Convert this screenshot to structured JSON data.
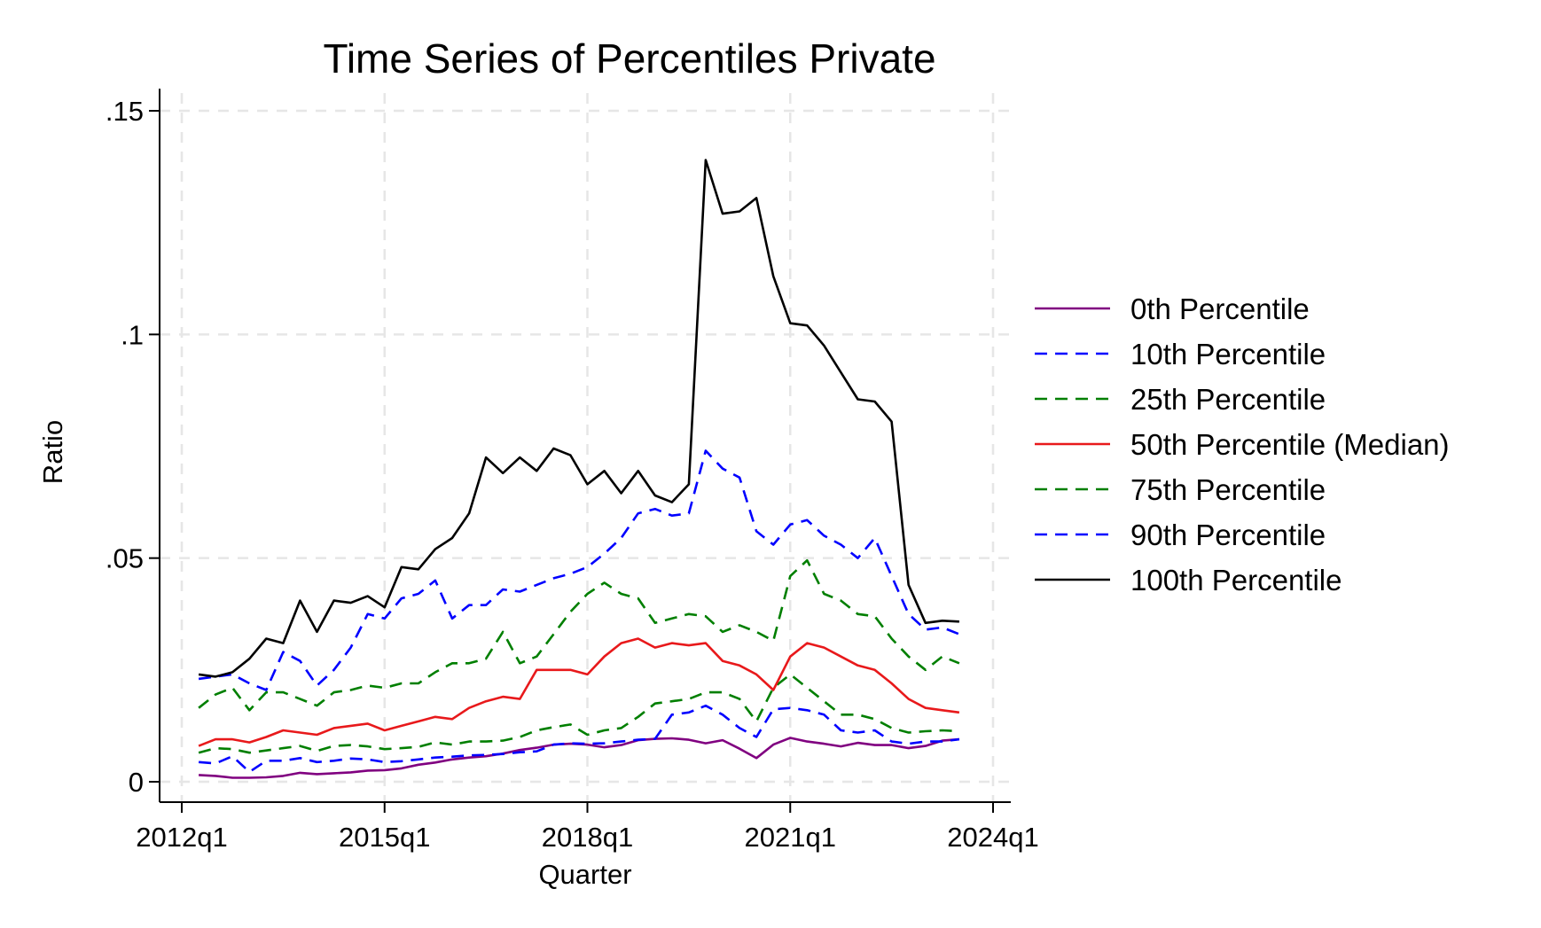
{
  "chart_data": {
    "type": "line",
    "title": "Time Series of Percentiles Private",
    "xlabel": "Quarter",
    "ylabel": "Ratio",
    "ylim": [
      0,
      0.155
    ],
    "xlim": [
      "2012q1",
      "2024q1"
    ],
    "x_ticks": [
      "2012q1",
      "2015q1",
      "2018q1",
      "2021q1",
      "2024q1"
    ],
    "y_ticks": [
      {
        "value": 0,
        "label": "0"
      },
      {
        "value": 0.05,
        "label": ".05"
      },
      {
        "value": 0.1,
        "label": ".1"
      },
      {
        "value": 0.15,
        "label": ".15"
      }
    ],
    "grid": true,
    "legend_position": "right",
    "x": [
      "2012q2",
      "2012q3",
      "2012q4",
      "2013q1",
      "2013q2",
      "2013q3",
      "2013q4",
      "2014q1",
      "2014q2",
      "2014q3",
      "2014q4",
      "2015q1",
      "2015q2",
      "2015q3",
      "2015q4",
      "2016q1",
      "2016q2",
      "2016q3",
      "2016q4",
      "2017q1",
      "2017q2",
      "2017q3",
      "2017q4",
      "2018q1",
      "2018q2",
      "2018q3",
      "2018q4",
      "2019q1",
      "2019q2",
      "2019q3",
      "2019q4",
      "2020q1",
      "2020q2",
      "2020q3",
      "2020q4",
      "2021q1",
      "2021q2",
      "2021q3",
      "2021q4",
      "2022q1",
      "2022q2",
      "2022q3",
      "2022q4",
      "2023q1",
      "2023q2",
      "2023q3"
    ],
    "series": [
      {
        "name": "0th Percentile",
        "color": "#800080",
        "dash": "solid",
        "values": [
          0.0015,
          0.0013,
          0.0009,
          0.0009,
          0.001,
          0.0013,
          0.002,
          0.0017,
          0.0019,
          0.0021,
          0.0025,
          0.0026,
          0.003,
          0.0038,
          0.0043,
          0.005,
          0.0054,
          0.0057,
          0.0063,
          0.0071,
          0.0076,
          0.0083,
          0.0085,
          0.0083,
          0.0077,
          0.0082,
          0.0093,
          0.0096,
          0.0097,
          0.0094,
          0.0086,
          0.0093,
          0.0074,
          0.0053,
          0.0083,
          0.0098,
          0.009,
          0.0085,
          0.0079,
          0.0087,
          0.0082,
          0.0082,
          0.0075,
          0.008,
          0.0092,
          0.0095
        ]
      },
      {
        "name": "10th Percentile",
        "color": "#0000ff",
        "dash": "dashed",
        "values": [
          0.0044,
          0.0041,
          0.0057,
          0.0022,
          0.0047,
          0.0047,
          0.0053,
          0.0044,
          0.0047,
          0.0052,
          0.005,
          0.0044,
          0.0046,
          0.005,
          0.0054,
          0.0056,
          0.0059,
          0.006,
          0.0062,
          0.0066,
          0.0068,
          0.0083,
          0.0086,
          0.0085,
          0.0086,
          0.009,
          0.0094,
          0.0096,
          0.015,
          0.0155,
          0.017,
          0.015,
          0.012,
          0.01,
          0.0162,
          0.0165,
          0.016,
          0.015,
          0.0115,
          0.011,
          0.0115,
          0.009,
          0.0085,
          0.009,
          0.009,
          0.0095
        ]
      },
      {
        "name": "25th Percentile",
        "color": "#007f00",
        "dash": "dashed",
        "values": [
          0.0065,
          0.0075,
          0.0073,
          0.0065,
          0.007,
          0.0075,
          0.008,
          0.0069,
          0.008,
          0.0082,
          0.0079,
          0.0073,
          0.0075,
          0.0078,
          0.0088,
          0.0083,
          0.009,
          0.009,
          0.0092,
          0.01,
          0.0115,
          0.0122,
          0.0128,
          0.0105,
          0.0115,
          0.012,
          0.0145,
          0.0175,
          0.018,
          0.0185,
          0.02,
          0.02,
          0.0185,
          0.0135,
          0.021,
          0.024,
          0.021,
          0.018,
          0.015,
          0.015,
          0.014,
          0.012,
          0.011,
          0.0113,
          0.0115,
          0.0113
        ]
      },
      {
        "name": "50th Percentile (Median)",
        "color": "#e8191b",
        "dash": "solid",
        "values": [
          0.008,
          0.0095,
          0.0095,
          0.0088,
          0.01,
          0.0115,
          0.011,
          0.0105,
          0.012,
          0.0125,
          0.013,
          0.0115,
          0.0125,
          0.0135,
          0.0145,
          0.014,
          0.0165,
          0.018,
          0.019,
          0.0185,
          0.025,
          0.025,
          0.025,
          0.024,
          0.028,
          0.031,
          0.032,
          0.03,
          0.031,
          0.0305,
          0.031,
          0.027,
          0.026,
          0.024,
          0.0205,
          0.028,
          0.031,
          0.03,
          0.028,
          0.026,
          0.025,
          0.022,
          0.0185,
          0.0165,
          0.016,
          0.0155
        ]
      },
      {
        "name": "75th Percentile",
        "color": "#007f00",
        "dash": "dashed",
        "values": [
          0.0165,
          0.0195,
          0.021,
          0.016,
          0.02,
          0.02,
          0.0185,
          0.017,
          0.02,
          0.0205,
          0.0215,
          0.021,
          0.022,
          0.022,
          0.0245,
          0.0265,
          0.0265,
          0.0275,
          0.0335,
          0.0265,
          0.028,
          0.033,
          0.038,
          0.042,
          0.0445,
          0.042,
          0.041,
          0.0355,
          0.0365,
          0.0375,
          0.037,
          0.0335,
          0.035,
          0.0335,
          0.0315,
          0.046,
          0.0495,
          0.042,
          0.0405,
          0.0375,
          0.037,
          0.032,
          0.028,
          0.025,
          0.028,
          0.0265
        ]
      },
      {
        "name": "90th Percentile",
        "color": "#0000ff",
        "dash": "dashed",
        "values": [
          0.023,
          0.0235,
          0.024,
          0.022,
          0.0205,
          0.029,
          0.027,
          0.0215,
          0.025,
          0.03,
          0.0375,
          0.0365,
          0.041,
          0.042,
          0.045,
          0.0365,
          0.0395,
          0.0395,
          0.043,
          0.0425,
          0.044,
          0.0455,
          0.0465,
          0.048,
          0.051,
          0.0545,
          0.06,
          0.061,
          0.0595,
          0.06,
          0.074,
          0.07,
          0.068,
          0.056,
          0.053,
          0.0575,
          0.0585,
          0.055,
          0.053,
          0.05,
          0.0545,
          0.046,
          0.0375,
          0.034,
          0.0345,
          0.033
        ]
      },
      {
        "name": "100th Percentile",
        "color": "#000000",
        "dash": "solid",
        "values": [
          0.024,
          0.0235,
          0.0245,
          0.0275,
          0.032,
          0.031,
          0.0405,
          0.0335,
          0.0405,
          0.04,
          0.0415,
          0.039,
          0.048,
          0.0475,
          0.052,
          0.0545,
          0.06,
          0.0725,
          0.069,
          0.0725,
          0.0695,
          0.0745,
          0.073,
          0.0665,
          0.0695,
          0.0645,
          0.0695,
          0.064,
          0.0625,
          0.0665,
          0.139,
          0.127,
          0.1275,
          0.1305,
          0.113,
          0.1025,
          0.102,
          0.0975,
          0.0915,
          0.0855,
          0.085,
          0.0805,
          0.044,
          0.0355,
          0.036,
          0.0358
        ]
      }
    ]
  }
}
